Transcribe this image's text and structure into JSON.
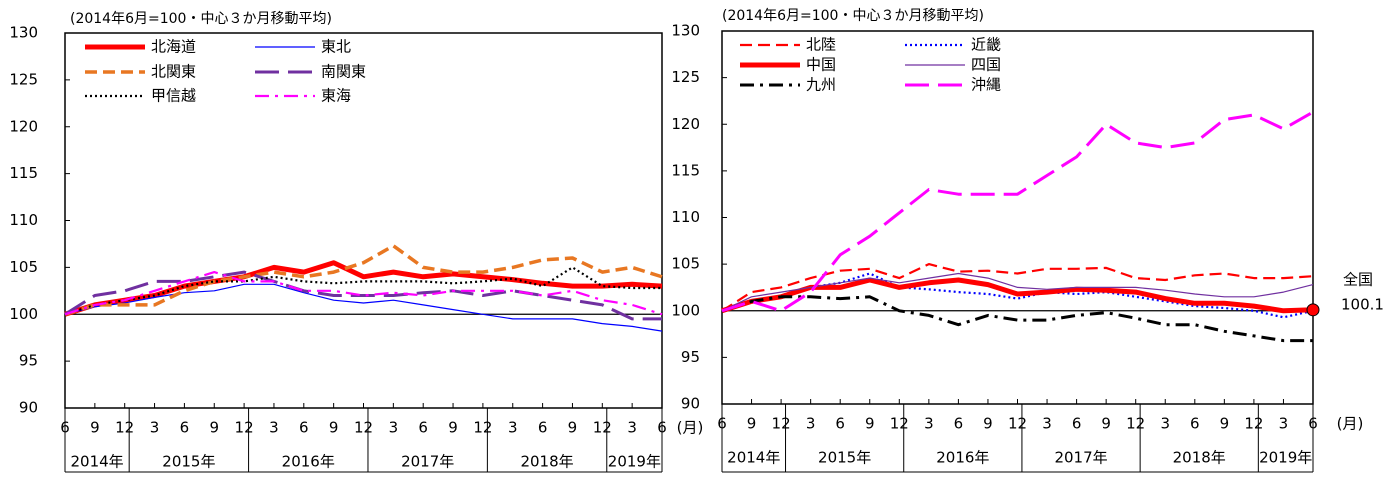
{
  "chart_data": [
    {
      "type": "line",
      "title": "(2014年6月=100・中心３か月移動平均)",
      "categories": [
        "6",
        "9",
        "12",
        "3",
        "6",
        "9",
        "12",
        "3",
        "6",
        "9",
        "12",
        "3",
        "6",
        "9",
        "12",
        "3",
        "6",
        "9",
        "12",
        "3",
        "6"
      ],
      "x_groups": [
        "2014年",
        "2015年",
        "2016年",
        "2017年",
        "2018年",
        "2019年"
      ],
      "x_unit": "(月)",
      "ylim": [
        90,
        130
      ],
      "yticks": [
        90,
        95,
        100,
        105,
        110,
        115,
        120,
        125,
        130
      ],
      "reference_line": 100,
      "legend": "upper left",
      "series": [
        {
          "name": "北海道",
          "color": "#ff0000",
          "linestyle": "solid",
          "linewidth": 5,
          "values": [
            100,
            101,
            101.5,
            102,
            103,
            103.5,
            104,
            105,
            104.5,
            105.5,
            104,
            104.5,
            104,
            104.3,
            104,
            103.7,
            103.3,
            103,
            103,
            103.2,
            103
          ]
        },
        {
          "name": "東北",
          "color": "#0000ff",
          "linestyle": "solid",
          "linewidth": 1.2,
          "values": [
            100,
            100.8,
            101.2,
            101.8,
            102.3,
            102.5,
            103.2,
            103.2,
            102.3,
            101.5,
            101.2,
            101.5,
            101,
            100.5,
            100,
            99.5,
            99.5,
            99.5,
            99,
            98.7,
            98.2
          ]
        },
        {
          "name": "北関東",
          "color": "#e87722",
          "linestyle": "dashed",
          "linewidth": 3.5,
          "values": [
            100,
            101,
            101,
            101,
            102.5,
            103.5,
            104,
            104.5,
            104,
            104.5,
            105.5,
            107.3,
            105,
            104.5,
            104.5,
            105,
            105.8,
            106,
            104.5,
            105,
            104
          ]
        },
        {
          "name": "南関東",
          "color": "#7030a0",
          "linestyle": "longdash",
          "linewidth": 3,
          "values": [
            100,
            102,
            102.5,
            103.5,
            103.5,
            104,
            104.5,
            103.5,
            102.5,
            102,
            102,
            102,
            102.3,
            102.5,
            102,
            102.5,
            102,
            101.5,
            101,
            99.5,
            99.5
          ]
        },
        {
          "name": "甲信越",
          "color": "#000000",
          "linestyle": "dotted",
          "linewidth": 2.2,
          "values": [
            100,
            101,
            101.5,
            102,
            103,
            103.5,
            103.5,
            104,
            103.5,
            103.3,
            103.5,
            103.5,
            103.5,
            103.3,
            103.5,
            103.8,
            103,
            105,
            103,
            102.8,
            102.8
          ]
        },
        {
          "name": "東海",
          "color": "#ff00ff",
          "linestyle": "dashdot",
          "linewidth": 2.2,
          "values": [
            100,
            101,
            101.5,
            102.5,
            103.5,
            104.5,
            103.5,
            103.5,
            102.5,
            102.5,
            102,
            102.3,
            102,
            102.5,
            102.5,
            102.5,
            102,
            102.5,
            101.5,
            101,
            100
          ]
        }
      ]
    },
    {
      "type": "line",
      "title": "(2014年6月=100・中心３か月移動平均)",
      "categories": [
        "6",
        "9",
        "12",
        "3",
        "6",
        "9",
        "12",
        "3",
        "6",
        "9",
        "12",
        "3",
        "6",
        "9",
        "12",
        "3",
        "6",
        "9",
        "12",
        "3",
        "6"
      ],
      "x_groups": [
        "2014年",
        "2015年",
        "2016年",
        "2017年",
        "2018年",
        "2019年"
      ],
      "x_unit": "(月)",
      "ylim": [
        90,
        130
      ],
      "yticks": [
        90,
        95,
        100,
        105,
        110,
        115,
        120,
        125,
        130
      ],
      "reference_line": 100,
      "legend": "upper left",
      "annotation": {
        "label": "全国",
        "value": 100.1,
        "color": "#ff0000"
      },
      "series": [
        {
          "name": "北陸",
          "color": "#ff0000",
          "linestyle": "dashed",
          "linewidth": 2.2,
          "values": [
            100,
            102,
            102.5,
            103.5,
            104.3,
            104.5,
            103.5,
            105,
            104.2,
            104.3,
            104,
            104.5,
            104.5,
            104.6,
            103.5,
            103.3,
            103.8,
            104,
            103.5,
            103.5,
            103.7
          ]
        },
        {
          "name": "近畿",
          "color": "#0000ff",
          "linestyle": "dotted",
          "linewidth": 2.2,
          "values": [
            100,
            101,
            101.5,
            102.5,
            103,
            104,
            102.5,
            102.3,
            102,
            101.8,
            101.3,
            102,
            101.8,
            102,
            101.5,
            101,
            100.5,
            100.3,
            100,
            99.3,
            100
          ]
        },
        {
          "name": "中国",
          "color": "#ff0000",
          "linestyle": "solid",
          "linewidth": 5,
          "values": [
            100,
            101,
            101.5,
            102.5,
            102.5,
            103.3,
            102.5,
            103,
            103.3,
            102.8,
            101.8,
            102,
            102.3,
            102.2,
            102,
            101.3,
            100.8,
            100.8,
            100.5,
            100,
            100.1
          ]
        },
        {
          "name": "四国",
          "color": "#7030a0",
          "linestyle": "solid",
          "linewidth": 1.2,
          "values": [
            100,
            101.5,
            102,
            102.5,
            103,
            103.5,
            103,
            103.5,
            104,
            103.5,
            102.5,
            102.3,
            102.5,
            102.5,
            102.5,
            102.2,
            101.8,
            101.5,
            101.5,
            102,
            102.8
          ]
        },
        {
          "name": "九州",
          "color": "#000000",
          "linestyle": "dashdot",
          "linewidth": 3,
          "values": [
            100,
            101,
            101.5,
            101.5,
            101.3,
            101.5,
            100,
            99.5,
            98.5,
            99.5,
            99,
            99,
            99.5,
            99.8,
            99.2,
            98.5,
            98.5,
            97.8,
            97.3,
            96.8,
            96.8
          ]
        },
        {
          "name": "沖縄",
          "color": "#ff00ff",
          "linestyle": "longdash",
          "linewidth": 3,
          "values": [
            100,
            101,
            100,
            102,
            106,
            108,
            110.5,
            113,
            112.5,
            112.5,
            112.5,
            114.5,
            116.5,
            120,
            118,
            117.5,
            118,
            120.5,
            121,
            119.5,
            121.3
          ]
        }
      ]
    }
  ]
}
